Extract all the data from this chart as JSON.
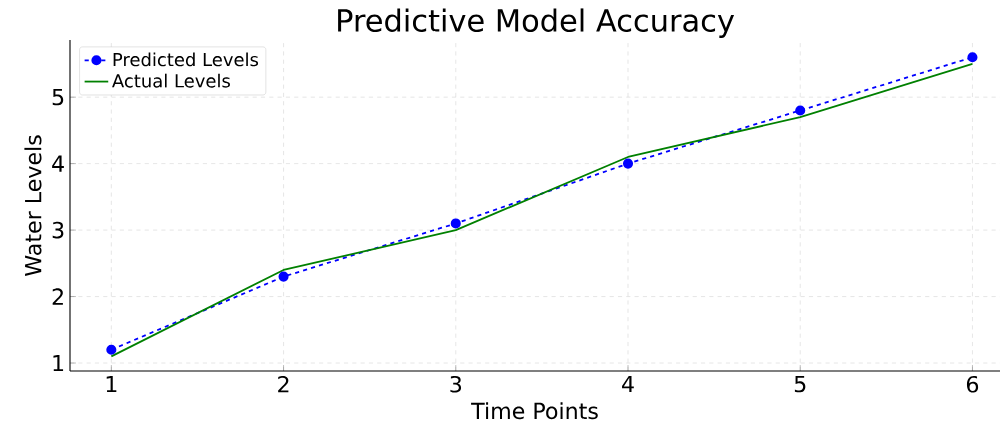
{
  "chart_data": {
    "type": "line",
    "title": "Predictive Model Accuracy",
    "xlabel": "Time Points",
    "ylabel": "Water Levels",
    "x": [
      1,
      2,
      3,
      4,
      5,
      6
    ],
    "series": [
      {
        "name": "Predicted Levels",
        "color": "#0000ff",
        "values": [
          1.2,
          2.3,
          3.1,
          4.0,
          4.8,
          5.6
        ],
        "marker": "circle",
        "line_style": "dashed"
      },
      {
        "name": "Actual Levels",
        "color": "#008000",
        "values": [
          1.1,
          2.4,
          3.0,
          4.1,
          4.7,
          5.5
        ],
        "marker": "none",
        "line_style": "solid"
      }
    ],
    "xlim": [
      0.76,
      6.16
    ],
    "ylim": [
      0.88,
      5.86
    ],
    "xticks": [
      1,
      2,
      3,
      4,
      5,
      6
    ],
    "yticks": [
      1,
      2,
      3,
      4,
      5
    ],
    "grid": true,
    "legend": "top left"
  }
}
